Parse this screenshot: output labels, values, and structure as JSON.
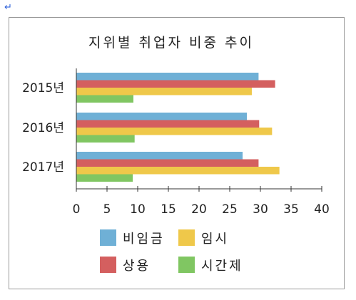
{
  "return_mark": "↵",
  "chart_data": {
    "type": "bar",
    "orientation": "horizontal",
    "title": "지위별 취업자 비중 추이",
    "categories": [
      "2015년",
      "2016년",
      "2017년"
    ],
    "series": [
      {
        "name": "비임금",
        "color": "#6fb0d6",
        "values": [
          29.7,
          27.8,
          27.1
        ]
      },
      {
        "name": "상용",
        "color": "#d45f5f",
        "values": [
          32.4,
          29.8,
          29.7
        ]
      },
      {
        "name": "임시",
        "color": "#efc84a",
        "values": [
          28.6,
          31.9,
          33.1
        ]
      },
      {
        "name": "시간제",
        "color": "#80c662",
        "values": [
          9.3,
          9.5,
          9.2
        ]
      }
    ],
    "xlim": [
      0,
      40
    ],
    "xticks": [
      0,
      5,
      10,
      15,
      20,
      25,
      30,
      35,
      40
    ],
    "grid": false,
    "legend_position": "bottom",
    "legend_order": [
      "비임금",
      "임시",
      "상용",
      "시간제"
    ]
  }
}
